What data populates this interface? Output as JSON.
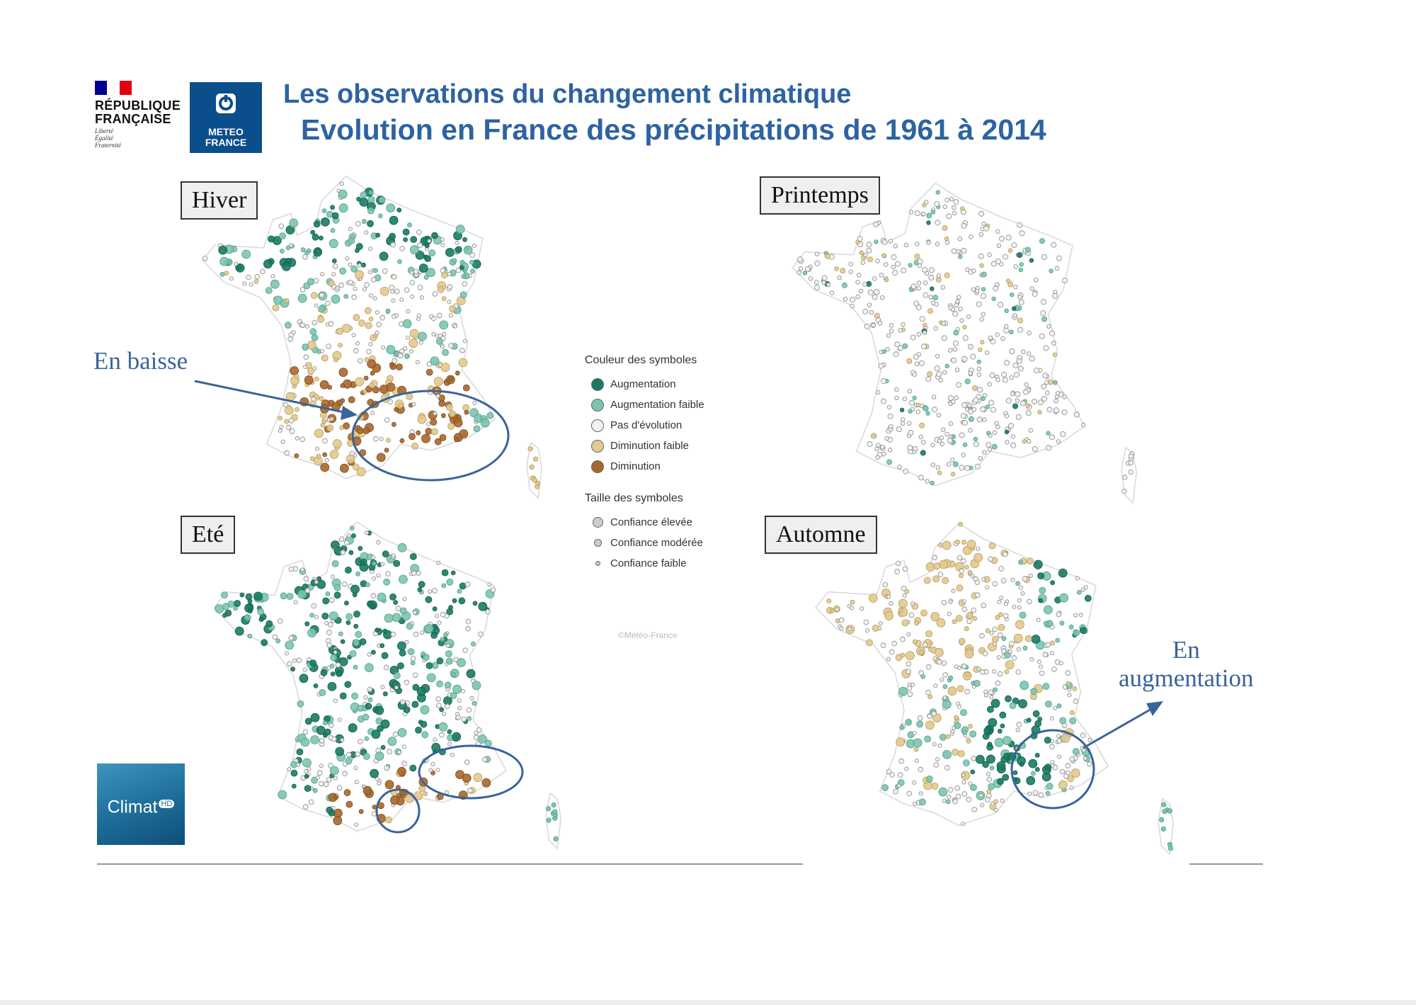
{
  "header": {
    "title_line1": "Les observations du changement climatique",
    "title_line2": "Evolution en France des précipitations de 1961 à 2014"
  },
  "logos": {
    "republique": {
      "name": "RÉPUBLIQUE FRANÇAISE",
      "line1": "RÉPUBLIQUE",
      "line2": "FRANÇAISE",
      "motto": [
        "Liberté",
        "Égalité",
        "Fraternité"
      ],
      "flag_colors": [
        "#000091",
        "#ffffff",
        "#e1000f"
      ]
    },
    "meteo_france": {
      "line1": "METEO",
      "line2": "FRANCE",
      "icon": "meteo-france-swirl-icon",
      "color": "#0b4e8c"
    },
    "climat": {
      "label": "Climat",
      "suffix": "HD"
    }
  },
  "maps": [
    {
      "season": "Hiver",
      "pattern": "winter"
    },
    {
      "season": "Printemps",
      "pattern": "spring"
    },
    {
      "season": "Eté",
      "pattern": "summer"
    },
    {
      "season": "Automne",
      "pattern": "autumn"
    }
  ],
  "annotations": {
    "baisse": "En baisse",
    "augmentation_line1": "En",
    "augmentation_line2": "augmentation"
  },
  "legend": {
    "color_title": "Couleur des symboles",
    "colors": [
      {
        "label": "Augmentation",
        "color": "#1a7a63"
      },
      {
        "label": "Augmentation faible",
        "color": "#7cc4b0"
      },
      {
        "label": "Pas d'évolution",
        "color": "#f2f2f2"
      },
      {
        "label": "Diminution faible",
        "color": "#e3c98c"
      },
      {
        "label": "Diminution",
        "color": "#a8672b"
      }
    ],
    "size_title": "Taille des symboles",
    "sizes": [
      {
        "label": "Confiance élevée",
        "level": 3
      },
      {
        "label": "Confiance modérée",
        "level": 2
      },
      {
        "label": "Confiance faible",
        "level": 1
      }
    ]
  },
  "copyright": "©Météo-France",
  "accent_color": "#3a639b"
}
